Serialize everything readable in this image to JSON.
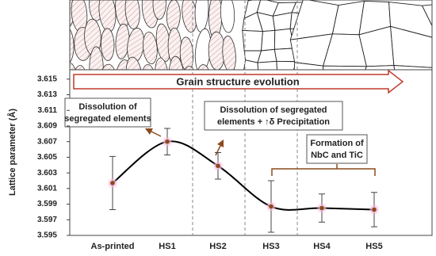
{
  "chart_data": {
    "type": "line",
    "ylabel": "Lattice parameter (Å)",
    "categories": [
      "As-printed",
      "HS1",
      "HS2",
      "HS3",
      "HS4",
      "HS5"
    ],
    "values": [
      3.6017,
      3.607,
      3.6039,
      3.5987,
      3.5985,
      3.5983
    ],
    "errors": [
      0.0034,
      0.0017,
      0.0017,
      0.0033,
      0.0018,
      0.0022
    ],
    "color": "#000000",
    "marker_color": "#8b4a1c",
    "ylim": [
      3.595,
      3.6162
    ],
    "yticks": [
      3.595,
      3.597,
      3.599,
      3.601,
      3.603,
      3.605,
      3.607,
      3.609,
      3.611,
      3.613,
      3.615
    ],
    "banner": "Grain structure evolution",
    "annotations": [
      [
        "Dissolution of",
        "segregated elements"
      ],
      [
        "Dissolution of segregated",
        "elements + ↑δ Precipitation"
      ],
      [
        "Formation of",
        "NbC and TiC"
      ]
    ]
  }
}
